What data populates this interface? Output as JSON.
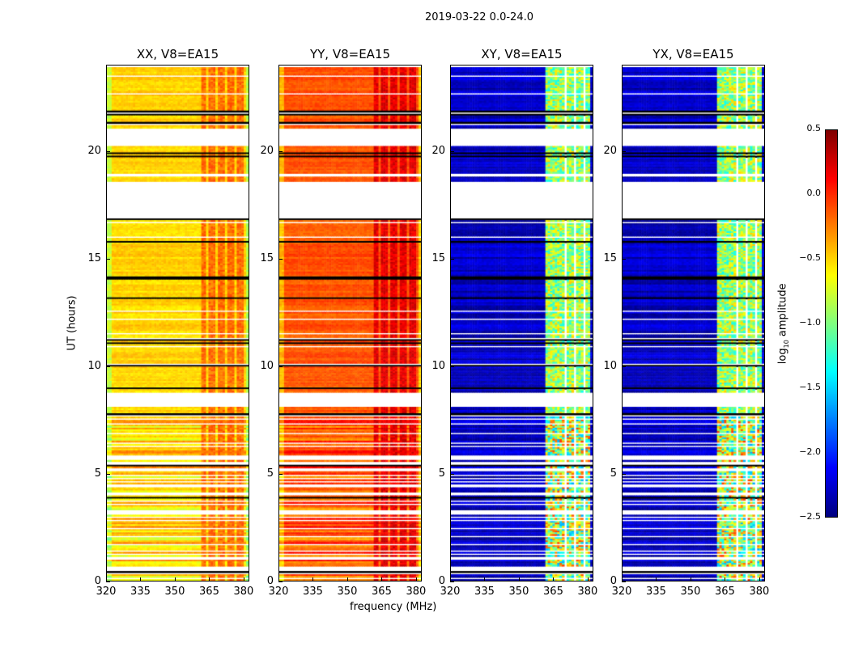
{
  "suptitle": "2019-03-22 0.0-24.0",
  "chart_data": {
    "type": "heatmap",
    "xlabel": "frequency (MHz)",
    "ylabel": "UT (hours)",
    "xlim": [
      320,
      382.5
    ],
    "ylim": [
      0,
      24
    ],
    "xticks": [
      "320",
      "335",
      "350",
      "365",
      "380"
    ],
    "yticks": [
      "0",
      "5",
      "10",
      "15",
      "20"
    ],
    "panels": [
      {
        "title": "XX, V8=EA15",
        "base": -0.5,
        "rfi": -0.25
      },
      {
        "title": "YY, V8=EA15",
        "base": -0.12,
        "rfi": 0.15
      },
      {
        "title": "XY, V8=EA15",
        "base": -2.3,
        "rfi": -1.0
      },
      {
        "title": "YX, V8=EA15",
        "base": -2.3,
        "rfi": -1.0
      }
    ],
    "flagged_hours": [
      [
        16.9,
        18.6
      ],
      [
        20.3,
        21.1
      ],
      [
        8.1,
        8.8
      ],
      [
        18.8,
        19.0
      ],
      [
        0.45,
        0.6
      ]
    ],
    "colorbar": {
      "label": "log10 amplitude",
      "label_main": "log",
      "label_sub": "10",
      "label_rest": " amplitude",
      "min": -2.5,
      "max": 0.5,
      "ticks": [
        "0.5",
        "0.0",
        "−0.5",
        "−1.0",
        "−1.5",
        "−2.0",
        "−2.5"
      ]
    }
  }
}
